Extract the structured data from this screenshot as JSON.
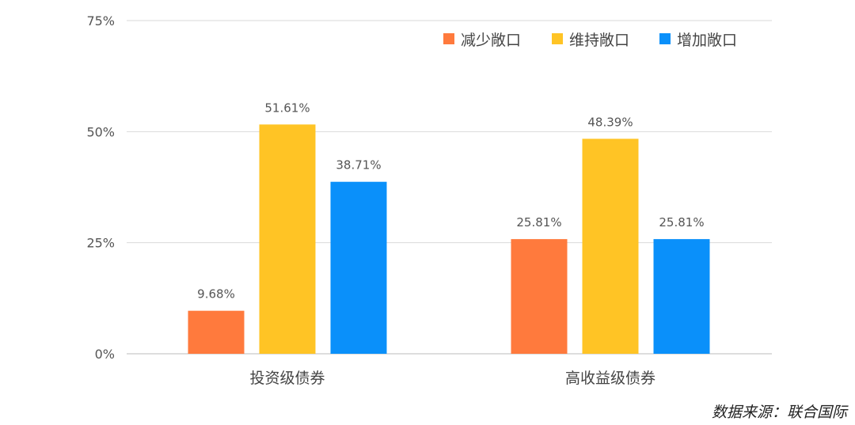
{
  "chart_data": {
    "type": "bar",
    "categories": [
      "投资级债券",
      "高收益级债券"
    ],
    "series": [
      {
        "name": "减少敞口",
        "color": "#FF7A3D",
        "values": [
          9.68,
          25.81
        ]
      },
      {
        "name": "维持敞口",
        "color": "#FFC425",
        "values": [
          51.61,
          48.39
        ]
      },
      {
        "name": "增加敞口",
        "color": "#0A90FA",
        "values": [
          38.71,
          25.81
        ]
      }
    ],
    "data_labels": [
      [
        "9.68%",
        "25.81%"
      ],
      [
        "51.61%",
        "48.39%"
      ],
      [
        "38.71%",
        "25.81%"
      ]
    ],
    "yticks": [
      "0%",
      "25%",
      "50%",
      "75%"
    ],
    "ytick_values": [
      0,
      25,
      50,
      75
    ],
    "ylim": [
      0,
      75
    ],
    "grid": true,
    "legend": "top-right"
  },
  "source": "数据来源：联合国际"
}
